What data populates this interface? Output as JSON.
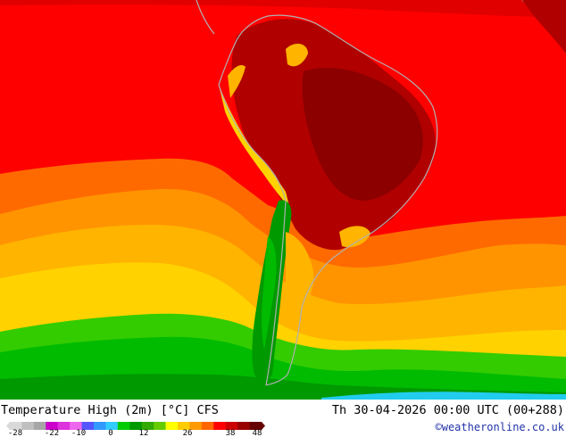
{
  "title": "Temperature High (2m) [°C] CFS",
  "datetime": "Th 30-04-2026 00:00 UTC (00+288)",
  "credit": "©weatheronline.co.uk",
  "legend": {
    "tick_labels": [
      "-28",
      "-22",
      "-10",
      "0",
      "12",
      "26",
      "38",
      "48"
    ],
    "colors": [
      "#d9d9d9",
      "#bfbfbf",
      "#a6a6a6",
      "#cc00cc",
      "#dd33dd",
      "#ee66ee",
      "#5555ff",
      "#3399ff",
      "#33ccff",
      "#00cc00",
      "#009900",
      "#33aa00",
      "#66cc00",
      "#ffff00",
      "#ffcc00",
      "#ff9900",
      "#ff6600",
      "#ff0000",
      "#cc0000",
      "#990000",
      "#660000"
    ]
  },
  "map": {
    "colors": {
      "ocean_warm": "#ff0000",
      "ocean_hot": "#e10000",
      "land_hot": "#b00000",
      "land_very_hot": "#8c0000",
      "ocean_orange": "#ff6a00",
      "ocean_light_orange": "#ff9400",
      "ocean_yellow_orange": "#ffb400",
      "ocean_yellow": "#ffd200",
      "ocean_green_light": "#33cc00",
      "ocean_green": "#00bb00",
      "cold_green": "#009900",
      "antarctic_cyan": "#22ccee",
      "coast": "#b0b0b0"
    }
  }
}
